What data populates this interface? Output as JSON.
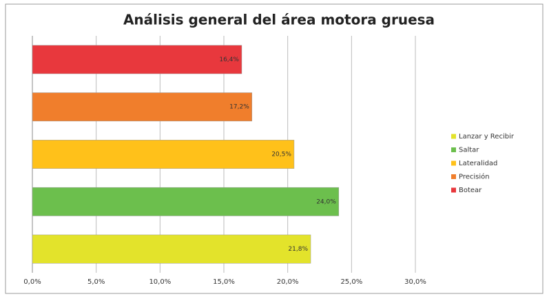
{
  "chart_data": {
    "type": "barh",
    "title": "Análisis general del área motora gruesa",
    "categories": [
      "Lanzar y Recibir",
      "Saltar",
      "Lateralidad",
      "Precisión",
      "Botear"
    ],
    "values": [
      21.8,
      24.0,
      20.5,
      17.2,
      16.4
    ],
    "value_labels": [
      "21,8%",
      "24,0%",
      "20,5%",
      "17,2%",
      "16,4%"
    ],
    "colors": [
      "#e3e32b",
      "#6cbf4d",
      "#ffc11a",
      "#f07e2c",
      "#e8383d"
    ],
    "xlim": [
      0,
      30
    ],
    "xticks": [
      {
        "value": 0,
        "label": "0,0%"
      },
      {
        "value": 5,
        "label": "5,0%"
      },
      {
        "value": 10,
        "label": "10,0%"
      },
      {
        "value": 15,
        "label": "15,0%"
      },
      {
        "value": 20,
        "label": "20,0%"
      },
      {
        "value": 25,
        "label": "25,0%"
      },
      {
        "value": 30,
        "label": "30,0%"
      }
    ],
    "grid": true,
    "legend": "right"
  }
}
